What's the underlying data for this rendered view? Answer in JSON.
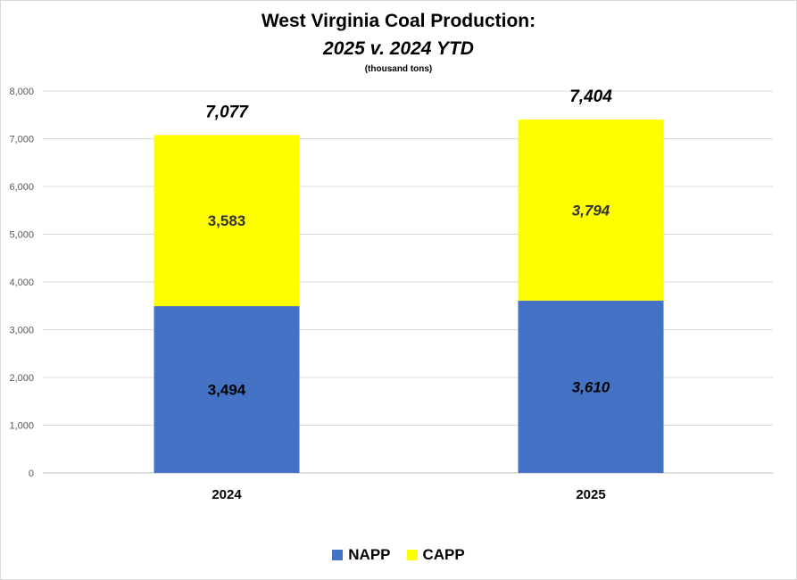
{
  "chart_data": {
    "type": "bar",
    "stacked": true,
    "title": "West Virginia Coal Production:",
    "subtitle": "2025 v. 2024 YTD",
    "units_note": "(thousand tons)",
    "categories": [
      "2024",
      "2025"
    ],
    "series": [
      {
        "name": "NAPP",
        "color": "#4472c4",
        "values": [
          3494,
          3610
        ],
        "labels": [
          "3,494",
          "3,610"
        ]
      },
      {
        "name": "CAPP",
        "color": "#ffff00",
        "values": [
          3583,
          3794
        ],
        "labels": [
          "3,583",
          "3,794"
        ]
      }
    ],
    "totals": [
      7077,
      7404
    ],
    "total_labels": [
      "7,077",
      "7,404"
    ],
    "ylim": [
      0,
      8000
    ],
    "yticks": [
      0,
      1000,
      2000,
      3000,
      4000,
      5000,
      6000,
      7000,
      8000
    ],
    "ytick_labels": [
      "0",
      "1,000",
      "2,000",
      "3,000",
      "4,000",
      "5,000",
      "6,000",
      "7,000",
      "8,000"
    ],
    "grid": true,
    "legend_position": "bottom"
  }
}
